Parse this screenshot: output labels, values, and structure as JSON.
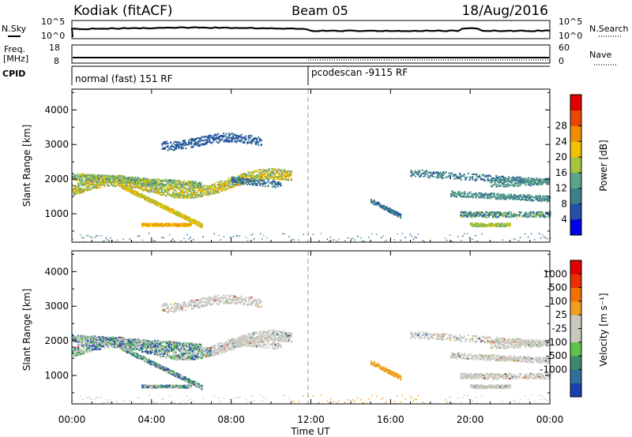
{
  "header": {
    "station": "Kodiak (fitACF)",
    "beam": "Beam 05",
    "date": "18/Aug/2016"
  },
  "labels": {
    "nsky": "N.Sky",
    "freq": "Freq.",
    "freq_unit": "[MHz]",
    "cpid": "CPID",
    "nsearch": "N.Search",
    "nave": "Nave",
    "x_axis": "Time UT"
  },
  "cpid_segments": [
    {
      "label": "normal (fast) 151 RF"
    },
    {
      "label": "pcodescan -9115 RF"
    }
  ],
  "chart_data": {
    "type": "heatmap",
    "x_ticks": [
      "00:00",
      "04:00",
      "08:00",
      "12:00",
      "16:00",
      "20:00",
      "00:00"
    ],
    "x_hours": [
      0,
      4,
      8,
      12,
      16,
      20,
      24
    ],
    "noise_panel": {
      "left_ticks": [
        "10^5",
        "10^0"
      ],
      "right_ticks": [
        "10^5",
        "10^0"
      ]
    },
    "freq_panel": {
      "left_ticks": [
        "18",
        "8"
      ],
      "right_ticks": [
        "60",
        "0"
      ]
    },
    "slant_range_ticks": [
      1000,
      2000,
      3000,
      4000
    ],
    "ylabel": "Slant Range [km]",
    "power_colorbar": {
      "label": "Power [dB]",
      "ticks": [
        4,
        8,
        12,
        16,
        20,
        24,
        28
      ],
      "colors": [
        "#0000e6",
        "#2450a8",
        "#3d7f8a",
        "#5aa58a",
        "#a6c43c",
        "#f2c200",
        "#f08c00",
        "#e84800",
        "#e00000"
      ]
    },
    "velocity_colorbar": {
      "label": "Velocity [m s⁻¹]",
      "ticks": [
        "1000",
        "500",
        "100",
        "25",
        "-25",
        "-100",
        "-500",
        "-1000"
      ],
      "colors": [
        "#1c3fb0",
        "#2f6f9a",
        "#3c8a6a",
        "#5cc34a",
        "#c8c8c0",
        "#c8c8c0",
        "#f0a020",
        "#f07000",
        "#e83000",
        "#e00000"
      ]
    }
  }
}
